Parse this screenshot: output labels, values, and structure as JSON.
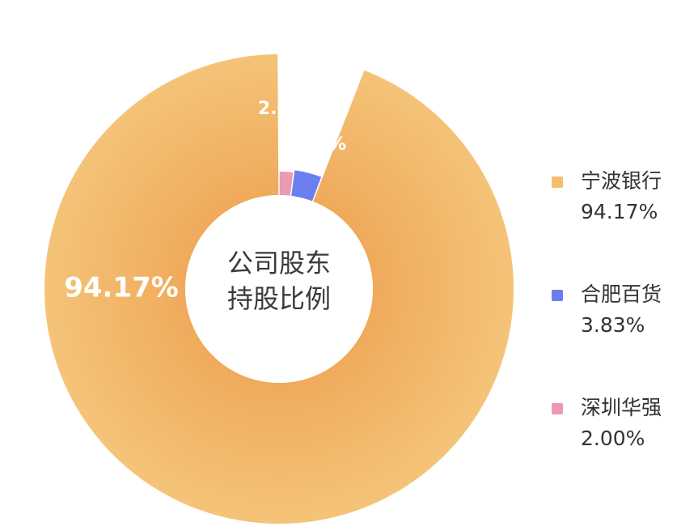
{
  "chart_data": {
    "type": "pie",
    "title": "公司股东持股比例",
    "title_lines": [
      "公司股东",
      "持股比例"
    ],
    "slices": [
      {
        "name": "宁波银行",
        "value": 94.17,
        "label": "94.17%",
        "color": "#f2bf6f"
      },
      {
        "name": "合肥百货",
        "value": 3.83,
        "label": "3.83%",
        "color": "#6b7ef0"
      },
      {
        "name": "深圳华强",
        "value": 2.0,
        "label": "2.00%",
        "color": "#ec9ab0"
      }
    ],
    "legend_placement": "right",
    "donut": true
  }
}
